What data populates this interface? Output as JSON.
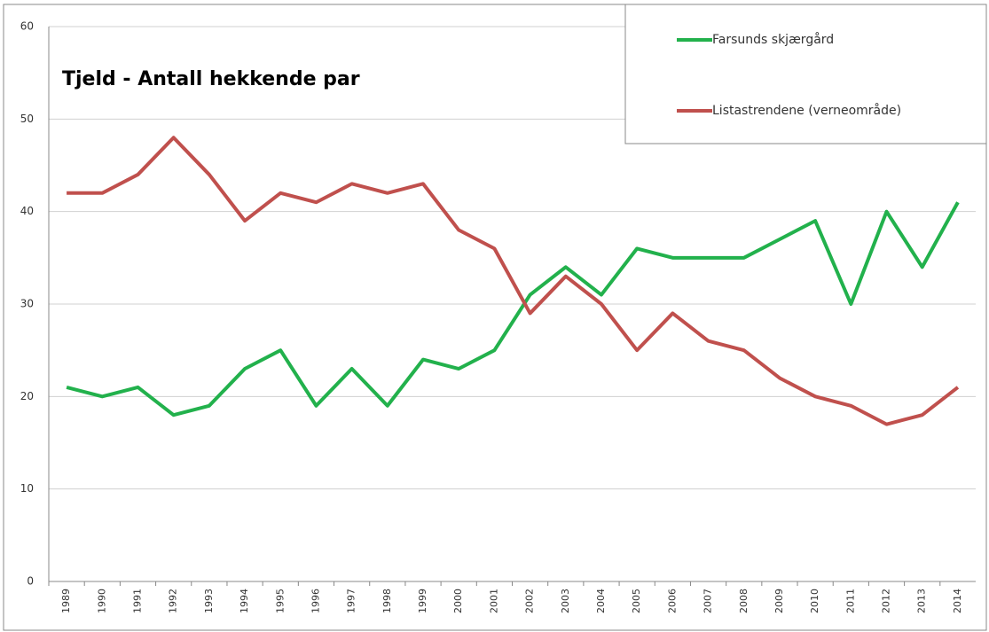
{
  "chart_data": {
    "type": "line",
    "title": "Tjeld - Antall hekkende par",
    "categories": [
      "1989",
      "1990",
      "1991",
      "1992",
      "1993",
      "1994",
      "1995",
      "1996",
      "1997",
      "1998",
      "1999",
      "2000",
      "2001",
      "2002",
      "2003",
      "2004",
      "2005",
      "2006",
      "2007",
      "2008",
      "2009",
      "2010",
      "2011",
      "2012",
      "2013",
      "2014"
    ],
    "series": [
      {
        "name": "Farsunds skjærgård",
        "color": "#22b14c",
        "values": [
          21,
          20,
          21,
          18,
          19,
          23,
          25,
          19,
          23,
          19,
          24,
          23,
          25,
          31,
          34,
          31,
          36,
          35,
          35,
          35,
          37,
          39,
          30,
          40,
          34,
          41
        ]
      },
      {
        "name": "Listastrendene (verneområde)",
        "color": "#c0504d",
        "values": [
          42,
          42,
          44,
          48,
          44,
          39,
          42,
          41,
          43,
          42,
          43,
          38,
          36,
          29,
          33,
          30,
          25,
          29,
          26,
          25,
          22,
          20,
          19,
          17,
          18,
          21
        ]
      }
    ],
    "ylim": [
      0,
      60
    ],
    "yticks": [
      0,
      10,
      20,
      30,
      40,
      50,
      60
    ],
    "grid": true,
    "legend": "top-right"
  }
}
